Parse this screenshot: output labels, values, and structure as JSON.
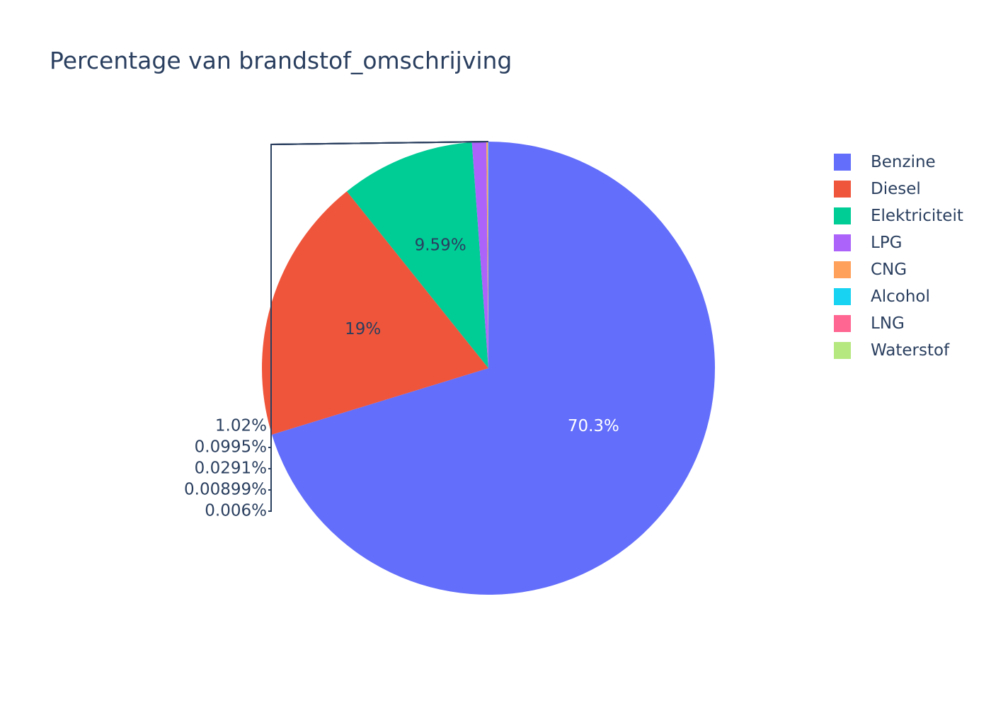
{
  "chart_data": {
    "type": "pie",
    "title": "Percentage van brandstof_omschrijving",
    "categories": [
      "Benzine",
      "Diesel",
      "Elektriciteit",
      "LPG",
      "CNG",
      "Alcohol",
      "LNG",
      "Waterstof"
    ],
    "values": [
      70.3,
      19.0,
      9.59,
      1.02,
      0.0995,
      0.0291,
      0.00899,
      0.006
    ],
    "labels": [
      "70.3%",
      "19%",
      "9.59%",
      "1.02%",
      "0.0995%",
      "0.0291%",
      "0.00899%",
      "0.006%"
    ],
    "colors": [
      "#636efa",
      "#ef553b",
      "#00cc96",
      "#ab63fa",
      "#ffa15a",
      "#19d3f3",
      "#ff6692",
      "#b6e880"
    ],
    "legend_position": "top-right",
    "direction": "clockwise"
  }
}
